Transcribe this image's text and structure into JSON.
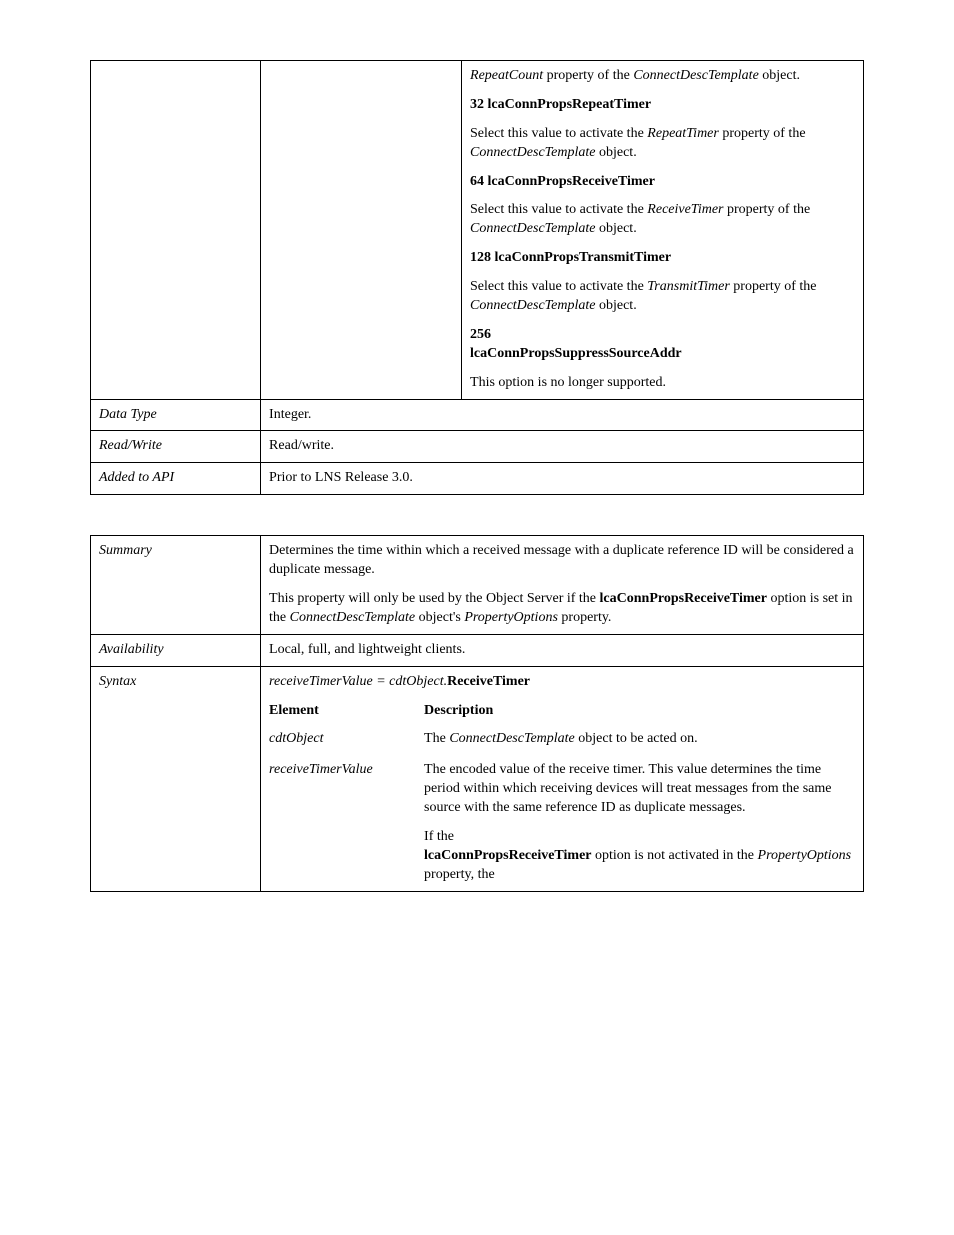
{
  "table1": {
    "options": [
      {
        "intro_a": "RepeatCount",
        "intro_b": " property of the ",
        "intro_c": "ConnectDescTemplate",
        "intro_d": " object.",
        "num": "32",
        "const": "lcaConnPropsRepeatTimer",
        "d1": "Select this value to activate the ",
        "d2": "RepeatTimer",
        "d3": " property of the ",
        "d4": "ConnectDescTemplate",
        "d5": " object.",
        "show_intro": true
      },
      {
        "num": "64",
        "const": "lcaConnPropsReceiveTimer",
        "d1": "Select this value to activate the ",
        "d2": "ReceiveTimer",
        "d3": " property of the ",
        "d4": "ConnectDescTemplate",
        "d5": " object.",
        "show_intro": false
      },
      {
        "num": "128",
        "const": "lcaConnPropsTransmitTimer",
        "d1": "Select this value to activate the ",
        "d2": "TransmitTimer",
        "d3": " property of the ",
        "d4": "ConnectDescTemplate",
        "d5": " object.",
        "show_intro": false
      }
    ],
    "opt256_num": "256",
    "opt256_const": "lcaConnPropsSuppressSourceAddr",
    "opt256_desc": "This option is no longer supported.",
    "rows": {
      "datatype_label": "Data Type",
      "datatype_value": "Integer.",
      "rw_label": "Read/Write",
      "rw_value": "Read/write.",
      "added_label": "Added to API",
      "added_value": "Prior to LNS Release 3.0."
    }
  },
  "table2": {
    "summary_label": "Summary",
    "summary_p1": "Determines the time within which a received message with a duplicate reference ID will be considered a duplicate message.",
    "summary_p2a": "This property will only be used by the Object Server if the ",
    "summary_p2b": "lcaConnPropsReceiveTimer",
    "summary_p2c": " option is set in the ",
    "summary_p2d": "ConnectDescTemplate",
    "summary_p2e": " object's ",
    "summary_p2f": "PropertyOptions",
    "summary_p2g": " property.",
    "avail_label": "Availability",
    "avail_value": "Local, full, and lightweight clients.",
    "syntax_label": "Syntax",
    "syntax_a": "receiveTimerValue = cdtObject.",
    "syntax_b": "ReceiveTimer",
    "hdr_element": "Element",
    "hdr_description": "Description",
    "el_cdt_name": "cdtObject",
    "el_cdt_d1": "The ",
    "el_cdt_d2": "ConnectDescTemplate",
    "el_cdt_d3": " object to be acted on.",
    "el_rtv_name": "receiveTimerValue",
    "el_rtv_p1": "The encoded value of the receive timer.  This value determines the time period within which receiving devices will treat messages from the same source with the same reference ID as duplicate messages.",
    "el_rtv_p2a": "If the ",
    "el_rtv_p2b": "lcaConnPropsReceiveTimer",
    "el_rtv_p2c": " option is not activated in the ",
    "el_rtv_p2d": "PropertyOptions",
    "el_rtv_p2e": " property, the"
  }
}
